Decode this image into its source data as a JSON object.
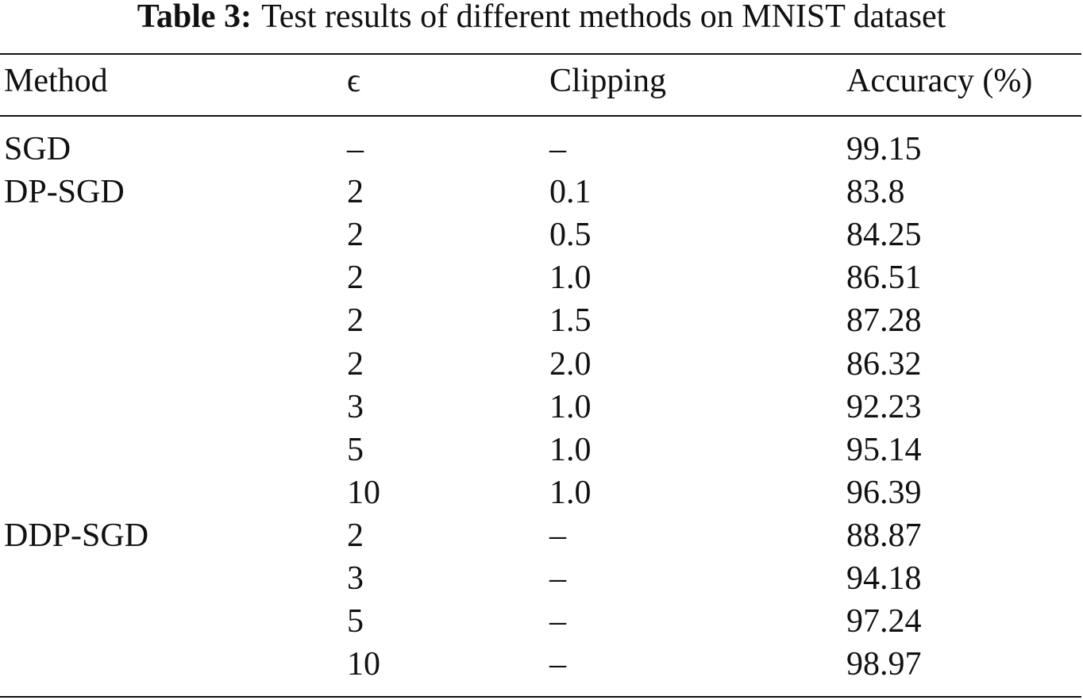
{
  "caption": {
    "label": "Table 3:",
    "text": "Test results of different methods on MNIST dataset"
  },
  "table": {
    "header": [
      "Method",
      "ϵ",
      "Clipping",
      "Accuracy (%)"
    ],
    "rows": [
      [
        "SGD",
        "–",
        "–",
        "99.15"
      ],
      [
        "DP-SGD",
        "2",
        "0.1",
        "83.8"
      ],
      [
        null,
        "2",
        "0.5",
        "84.25"
      ],
      [
        null,
        "2",
        "1.0",
        "86.51"
      ],
      [
        null,
        "2",
        "1.5",
        "87.28"
      ],
      [
        null,
        "2",
        "2.0",
        "86.32"
      ],
      [
        null,
        "3",
        "1.0",
        "92.23"
      ],
      [
        null,
        "5",
        "1.0",
        "95.14"
      ],
      [
        null,
        "10",
        "1.0",
        "96.39"
      ],
      [
        "DDP-SGD",
        "2",
        "–",
        "88.87"
      ],
      [
        null,
        "3",
        "–",
        "94.18"
      ],
      [
        null,
        "5",
        "–",
        "97.24"
      ],
      [
        null,
        "10",
        "–",
        "98.97"
      ]
    ]
  }
}
